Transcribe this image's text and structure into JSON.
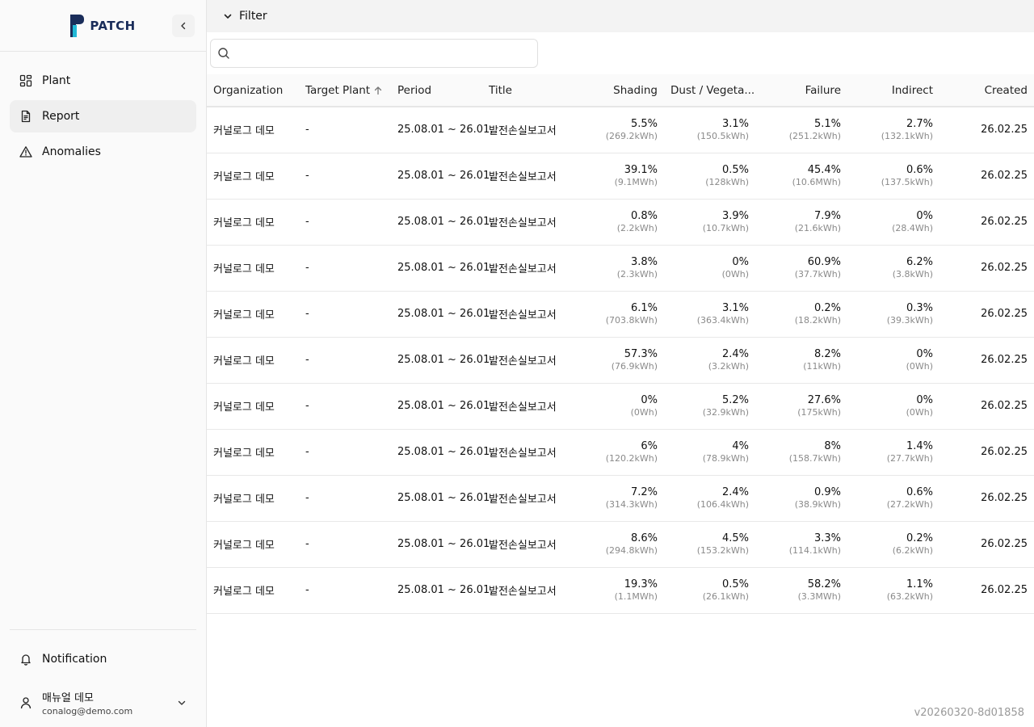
{
  "brand": {
    "name": "PATCH"
  },
  "nav": [
    {
      "label": "Plant",
      "icon": "dashboard-icon",
      "active": false
    },
    {
      "label": "Report",
      "icon": "document-icon",
      "active": true
    },
    {
      "label": "Anomalies",
      "icon": "warning-icon",
      "active": false
    }
  ],
  "notification": {
    "label": "Notification"
  },
  "user": {
    "name": "매뉴얼 데모",
    "email": "conalog@demo.com"
  },
  "filter": {
    "label": "Filter"
  },
  "search": {
    "placeholder": "",
    "value": ""
  },
  "table": {
    "headers": {
      "organization": "Organization",
      "target_plant": "Target Plant",
      "period": "Period",
      "title": "Title",
      "shading": "Shading",
      "dust": "Dust / Vegeta...",
      "failure": "Failure",
      "indirect": "Indirect",
      "created": "Created"
    },
    "rows": [
      {
        "organization": "커널로그 데모",
        "target_plant": "-",
        "period": "25.08.01 ~ 26.01.",
        "title": "발전손실보고서",
        "shading": "5.5%",
        "shading_kwh": "(269.2kWh)",
        "dust": "3.1%",
        "dust_kwh": "(150.5kWh)",
        "failure": "5.1%",
        "failure_kwh": "(251.2kWh)",
        "indirect": "2.7%",
        "indirect_kwh": "(132.1kWh)",
        "created": "26.02.25"
      },
      {
        "organization": "커널로그 데모",
        "target_plant": "-",
        "period": "25.08.01 ~ 26.01.",
        "title": "발전손실보고서",
        "shading": "39.1%",
        "shading_kwh": "(9.1MWh)",
        "dust": "0.5%",
        "dust_kwh": "(128kWh)",
        "failure": "45.4%",
        "failure_kwh": "(10.6MWh)",
        "indirect": "0.6%",
        "indirect_kwh": "(137.5kWh)",
        "created": "26.02.25"
      },
      {
        "organization": "커널로그 데모",
        "target_plant": "-",
        "period": "25.08.01 ~ 26.01.",
        "title": "발전손실보고서",
        "shading": "0.8%",
        "shading_kwh": "(2.2kWh)",
        "dust": "3.9%",
        "dust_kwh": "(10.7kWh)",
        "failure": "7.9%",
        "failure_kwh": "(21.6kWh)",
        "indirect": "0%",
        "indirect_kwh": "(28.4Wh)",
        "created": "26.02.25"
      },
      {
        "organization": "커널로그 데모",
        "target_plant": "-",
        "period": "25.08.01 ~ 26.01.",
        "title": "발전손실보고서",
        "shading": "3.8%",
        "shading_kwh": "(2.3kWh)",
        "dust": "0%",
        "dust_kwh": "(0Wh)",
        "failure": "60.9%",
        "failure_kwh": "(37.7kWh)",
        "indirect": "6.2%",
        "indirect_kwh": "(3.8kWh)",
        "created": "26.02.25"
      },
      {
        "organization": "커널로그 데모",
        "target_plant": "-",
        "period": "25.08.01 ~ 26.01.",
        "title": "발전손실보고서",
        "shading": "6.1%",
        "shading_kwh": "(703.8kWh)",
        "dust": "3.1%",
        "dust_kwh": "(363.4kWh)",
        "failure": "0.2%",
        "failure_kwh": "(18.2kWh)",
        "indirect": "0.3%",
        "indirect_kwh": "(39.3kWh)",
        "created": "26.02.25"
      },
      {
        "organization": "커널로그 데모",
        "target_plant": "-",
        "period": "25.08.01 ~ 26.01.",
        "title": "발전손실보고서",
        "shading": "57.3%",
        "shading_kwh": "(76.9kWh)",
        "dust": "2.4%",
        "dust_kwh": "(3.2kWh)",
        "failure": "8.2%",
        "failure_kwh": "(11kWh)",
        "indirect": "0%",
        "indirect_kwh": "(0Wh)",
        "created": "26.02.25"
      },
      {
        "organization": "커널로그 데모",
        "target_plant": "-",
        "period": "25.08.01 ~ 26.01.",
        "title": "발전손실보고서",
        "shading": "0%",
        "shading_kwh": "(0Wh)",
        "dust": "5.2%",
        "dust_kwh": "(32.9kWh)",
        "failure": "27.6%",
        "failure_kwh": "(175kWh)",
        "indirect": "0%",
        "indirect_kwh": "(0Wh)",
        "created": "26.02.25"
      },
      {
        "organization": "커널로그 데모",
        "target_plant": "-",
        "period": "25.08.01 ~ 26.01.",
        "title": "발전손실보고서",
        "shading": "6%",
        "shading_kwh": "(120.2kWh)",
        "dust": "4%",
        "dust_kwh": "(78.9kWh)",
        "failure": "8%",
        "failure_kwh": "(158.7kWh)",
        "indirect": "1.4%",
        "indirect_kwh": "(27.7kWh)",
        "created": "26.02.25"
      },
      {
        "organization": "커널로그 데모",
        "target_plant": "-",
        "period": "25.08.01 ~ 26.01.",
        "title": "발전손실보고서",
        "shading": "7.2%",
        "shading_kwh": "(314.3kWh)",
        "dust": "2.4%",
        "dust_kwh": "(106.4kWh)",
        "failure": "0.9%",
        "failure_kwh": "(38.9kWh)",
        "indirect": "0.6%",
        "indirect_kwh": "(27.2kWh)",
        "created": "26.02.25"
      },
      {
        "organization": "커널로그 데모",
        "target_plant": "-",
        "period": "25.08.01 ~ 26.01.",
        "title": "발전손실보고서",
        "shading": "8.6%",
        "shading_kwh": "(294.8kWh)",
        "dust": "4.5%",
        "dust_kwh": "(153.2kWh)",
        "failure": "3.3%",
        "failure_kwh": "(114.1kWh)",
        "indirect": "0.2%",
        "indirect_kwh": "(6.2kWh)",
        "created": "26.02.25"
      },
      {
        "organization": "커널로그 데모",
        "target_plant": "-",
        "period": "25.08.01 ~ 26.01.",
        "title": "발전손실보고서",
        "shading": "19.3%",
        "shading_kwh": "(1.1MWh)",
        "dust": "0.5%",
        "dust_kwh": "(26.1kWh)",
        "failure": "58.2%",
        "failure_kwh": "(3.3MWh)",
        "indirect": "1.1%",
        "indirect_kwh": "(63.2kWh)",
        "created": "26.02.25"
      }
    ]
  },
  "version": "v20260320-8d01858",
  "colors": {
    "brand_dark": "#1a2d5a",
    "brand_accent": "#22b8d6",
    "active_bg": "#efefef"
  }
}
